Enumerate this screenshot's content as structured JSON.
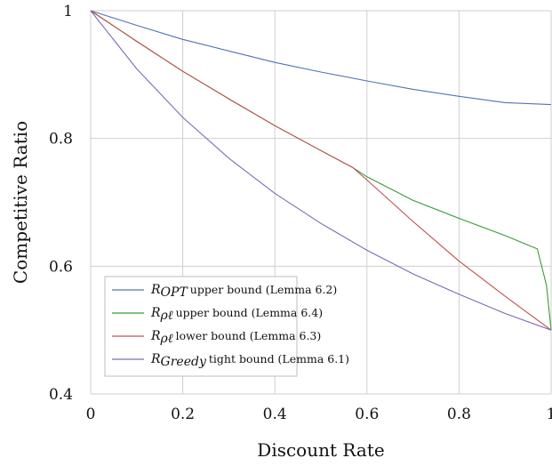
{
  "chart_data": {
    "type": "line",
    "xlabel": "Discount Rate",
    "ylabel": "Competitive Ratio",
    "xlim": [
      0,
      1
    ],
    "ylim": [
      0.4,
      1
    ],
    "xticks": [
      0,
      0.2,
      0.4,
      0.6,
      0.8,
      1
    ],
    "xtick_labels": [
      "0",
      "0.2",
      "0.4",
      "0.6",
      "0.8",
      "1"
    ],
    "yticks": [
      0.4,
      0.6,
      0.8,
      1
    ],
    "ytick_labels": [
      "0.4",
      "0.6",
      "0.8",
      "1"
    ],
    "grid": true,
    "legend_position": "bottom-left",
    "series": [
      {
        "sym_base": "R",
        "sym_sub": "OPT",
        "rest": "upper bound (Lemma 6.2)",
        "color": "#4f73b8",
        "points": [
          [
            0,
            1.0
          ],
          [
            0.1,
            0.977
          ],
          [
            0.2,
            0.955
          ],
          [
            0.3,
            0.937
          ],
          [
            0.4,
            0.919
          ],
          [
            0.5,
            0.904
          ],
          [
            0.6,
            0.89
          ],
          [
            0.7,
            0.877
          ],
          [
            0.8,
            0.866
          ],
          [
            0.9,
            0.856
          ],
          [
            1.0,
            0.853
          ]
        ]
      },
      {
        "sym_base": "R",
        "sym_sub": "ρℓ",
        "rest": "upper bound (Lemma 6.4)",
        "color": "#3a9a3a",
        "points": [
          [
            0,
            1.0
          ],
          [
            0.1,
            0.952
          ],
          [
            0.2,
            0.905
          ],
          [
            0.3,
            0.862
          ],
          [
            0.4,
            0.82
          ],
          [
            0.5,
            0.781
          ],
          [
            0.57,
            0.754
          ],
          [
            0.6,
            0.74
          ],
          [
            0.7,
            0.703
          ],
          [
            0.8,
            0.675
          ],
          [
            0.9,
            0.648
          ],
          [
            0.97,
            0.627
          ],
          [
            0.99,
            0.57
          ],
          [
            1.0,
            0.5
          ]
        ]
      },
      {
        "sym_base": "R",
        "sym_sub": "ρℓ",
        "rest": "lower bound (Lemma 6.3)",
        "color": "#c0504d",
        "points": [
          [
            0,
            1.0
          ],
          [
            0.1,
            0.952
          ],
          [
            0.2,
            0.905
          ],
          [
            0.3,
            0.862
          ],
          [
            0.4,
            0.82
          ],
          [
            0.5,
            0.781
          ],
          [
            0.57,
            0.754
          ],
          [
            0.6,
            0.735
          ],
          [
            0.7,
            0.67
          ],
          [
            0.8,
            0.608
          ],
          [
            0.9,
            0.553
          ],
          [
            1.0,
            0.5
          ]
        ]
      },
      {
        "sym_base": "R",
        "sym_sub": "Greedy",
        "rest": "tight bound (Lemma 6.1)",
        "color": "#7d6ab8",
        "points": [
          [
            0,
            1.0
          ],
          [
            0.1,
            0.909
          ],
          [
            0.2,
            0.833
          ],
          [
            0.3,
            0.769
          ],
          [
            0.4,
            0.714
          ],
          [
            0.5,
            0.667
          ],
          [
            0.6,
            0.625
          ],
          [
            0.7,
            0.588
          ],
          [
            0.8,
            0.556
          ],
          [
            0.9,
            0.526
          ],
          [
            1.0,
            0.5
          ]
        ]
      }
    ]
  }
}
